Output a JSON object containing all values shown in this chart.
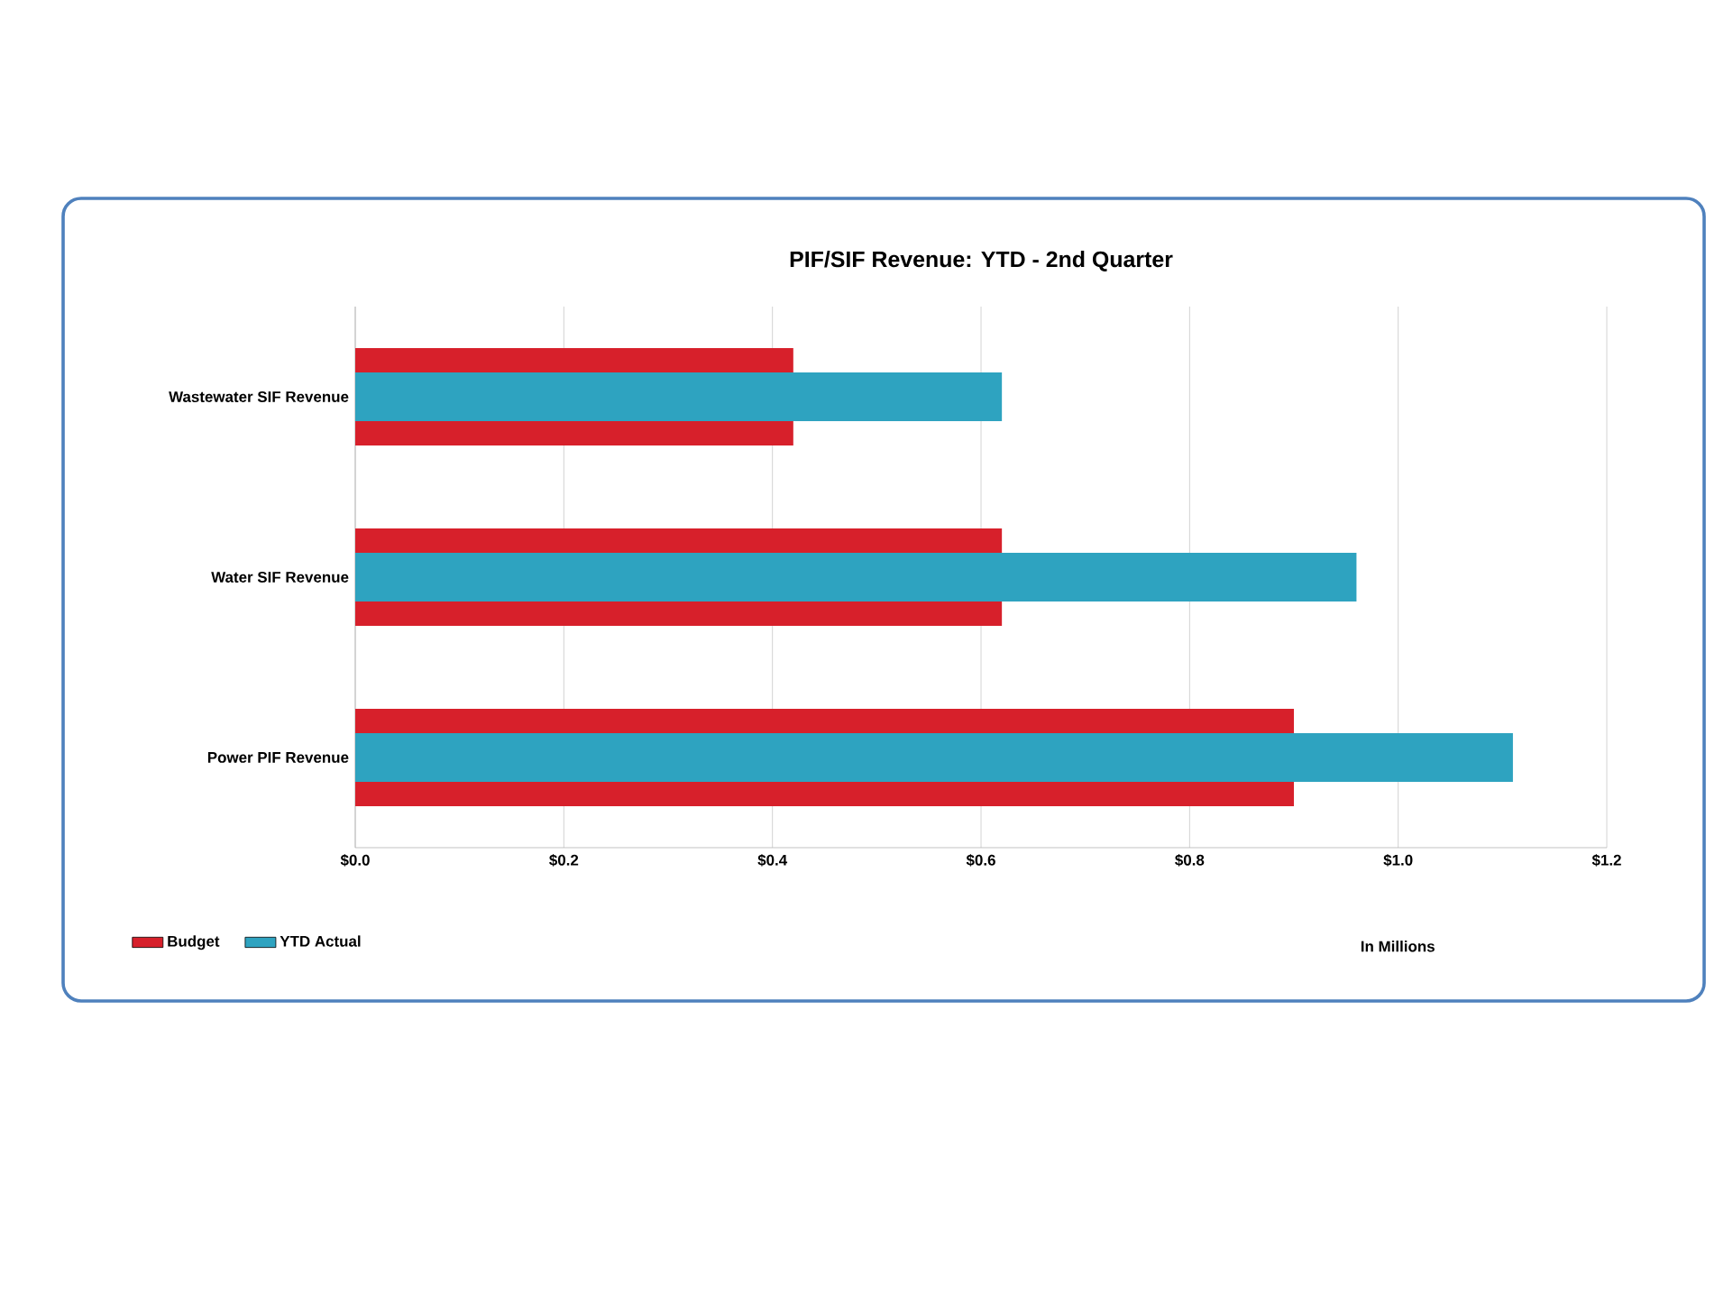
{
  "chart_data": {
    "type": "bar",
    "orientation": "horizontal",
    "title": "PIF/SIF Revenue:  YTD - 2nd Quarter",
    "xlabel": "In Millions",
    "categories": [
      "Wastewater SIF Revenue",
      "Water SIF Revenue",
      "Power PIF Revenue"
    ],
    "series": [
      {
        "name": "Budget",
        "color": "#d7202b",
        "values": [
          0.42,
          0.62,
          0.9
        ]
      },
      {
        "name": "YTD Actual",
        "color": "#2ea3c0",
        "values": [
          0.62,
          0.96,
          1.11
        ]
      }
    ],
    "xlim": [
      0,
      1.2
    ],
    "xticks": [
      {
        "value": 0,
        "label": "$0.0"
      },
      {
        "value": 0.2,
        "label": "$0.2"
      },
      {
        "value": 0.4,
        "label": "$0.4"
      },
      {
        "value": 0.6,
        "label": "$0.6"
      },
      {
        "value": 0.8,
        "label": "$0.8"
      },
      {
        "value": 1.0,
        "label": "$1.0"
      },
      {
        "value": 1.2,
        "label": "$1.2"
      }
    ],
    "grid": "x",
    "legend": "bottom left"
  }
}
